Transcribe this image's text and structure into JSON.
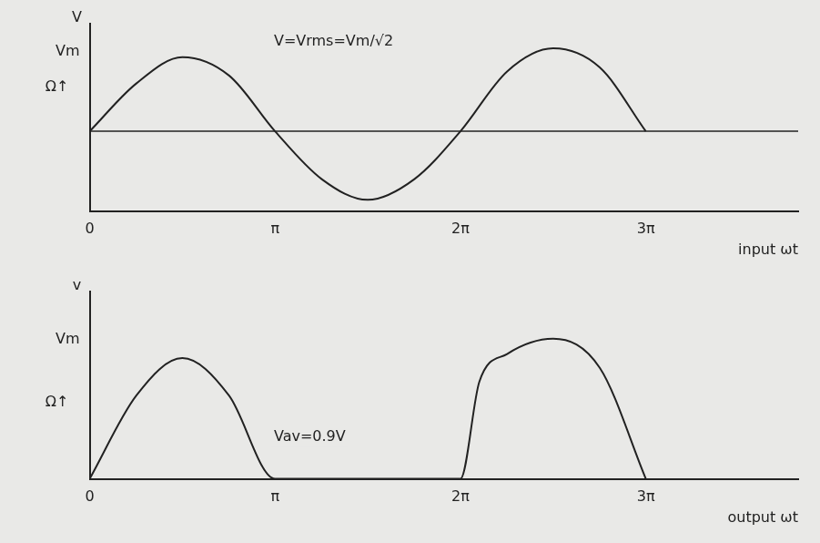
{
  "chart_data": [
    {
      "type": "line",
      "y_label": "V",
      "x_label": "input ωt",
      "annotations": [
        "V=Vrms=Vm/√2",
        "Ω↑"
      ],
      "x": [
        0,
        0.79,
        1.57,
        2.36,
        3.14,
        3.93,
        4.71,
        5.5,
        6.28,
        7.07,
        7.85,
        8.64,
        9.42
      ],
      "values": [
        0,
        0.6,
        0.93,
        0.7,
        0,
        -0.6,
        -0.86,
        -0.6,
        0,
        0.75,
        1.04,
        0.8,
        0
      ],
      "color": "#222222",
      "xlim": [
        0,
        12
      ],
      "xticks": [
        {
          "value": 0,
          "label": "0"
        },
        {
          "value": 3.14,
          "label": "π"
        },
        {
          "value": 6.28,
          "label": "2π"
        },
        {
          "value": 9.42,
          "label": "3π"
        }
      ],
      "ylim": [
        -1,
        1.35
      ],
      "yticks": [
        {
          "value": 1,
          "label": "Vm"
        }
      ],
      "grid": false
    },
    {
      "type": "line",
      "y_label": "v",
      "x_label": "output ωt",
      "annotations": [
        "Vav=0.9V",
        "Ω↑"
      ],
      "x": [
        0,
        0.79,
        1.57,
        2.36,
        3.14,
        4.71,
        6.28,
        6.6,
        7.07,
        7.85,
        8.64,
        9.42
      ],
      "values": [
        0,
        0.6,
        0.87,
        0.6,
        0,
        0,
        0,
        0.7,
        0.9,
        1.01,
        0.8,
        0
      ],
      "color": "#222222",
      "xlim": [
        0,
        12
      ],
      "xticks": [
        {
          "value": 0,
          "label": "0"
        },
        {
          "value": 3.14,
          "label": "π"
        },
        {
          "value": 6.28,
          "label": "2π"
        },
        {
          "value": 9.42,
          "label": "3π"
        }
      ],
      "ylim": [
        0,
        1.35
      ],
      "yticks": [
        {
          "value": 1,
          "label": "Vm"
        }
      ],
      "grid": false
    }
  ]
}
